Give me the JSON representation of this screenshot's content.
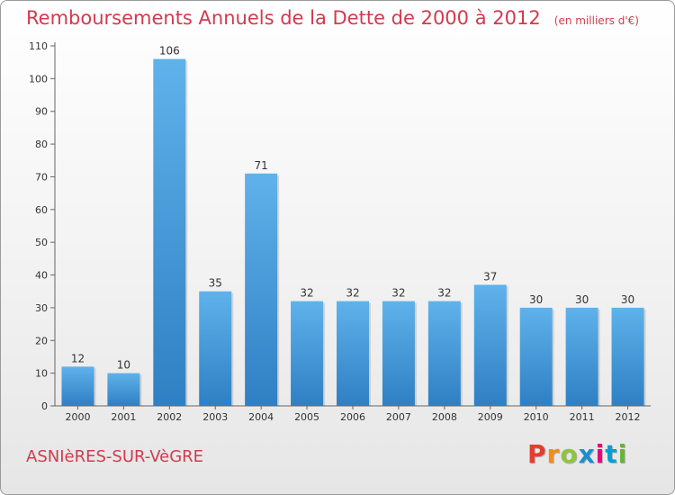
{
  "header": {
    "title": "Remboursements Annuels de la Dette de 2000 à 2012",
    "unit": "(en milliers d'€)"
  },
  "footer": {
    "place": "ASNIèRES-SUR-VèGRE",
    "logo_letters": [
      "P",
      "r",
      "o",
      "x",
      "i",
      "t",
      "i"
    ],
    "logo_colors": [
      "#e63c2d",
      "#f28c1c",
      "#8cc63f",
      "#1a8ecf",
      "#e6007e",
      "#00a0d2",
      "#6ab23e"
    ]
  },
  "colors": {
    "accent": "#d23a4e",
    "bar_light": "#5fb2ea",
    "bar_dark": "#2f7fc4"
  },
  "chart_data": {
    "type": "bar",
    "title": "Remboursements Annuels de la Dette de 2000 à 2012",
    "categories": [
      "2000",
      "2001",
      "2002",
      "2003",
      "2004",
      "2005",
      "2006",
      "2007",
      "2008",
      "2009",
      "2010",
      "2011",
      "2012"
    ],
    "values": [
      12,
      10,
      106,
      35,
      71,
      32,
      32,
      32,
      32,
      37,
      30,
      30,
      30
    ],
    "ylim": [
      0,
      110
    ],
    "yticks": [
      0,
      10,
      20,
      30,
      40,
      50,
      60,
      70,
      80,
      90,
      100,
      110
    ],
    "grid": false,
    "legend": "none"
  }
}
